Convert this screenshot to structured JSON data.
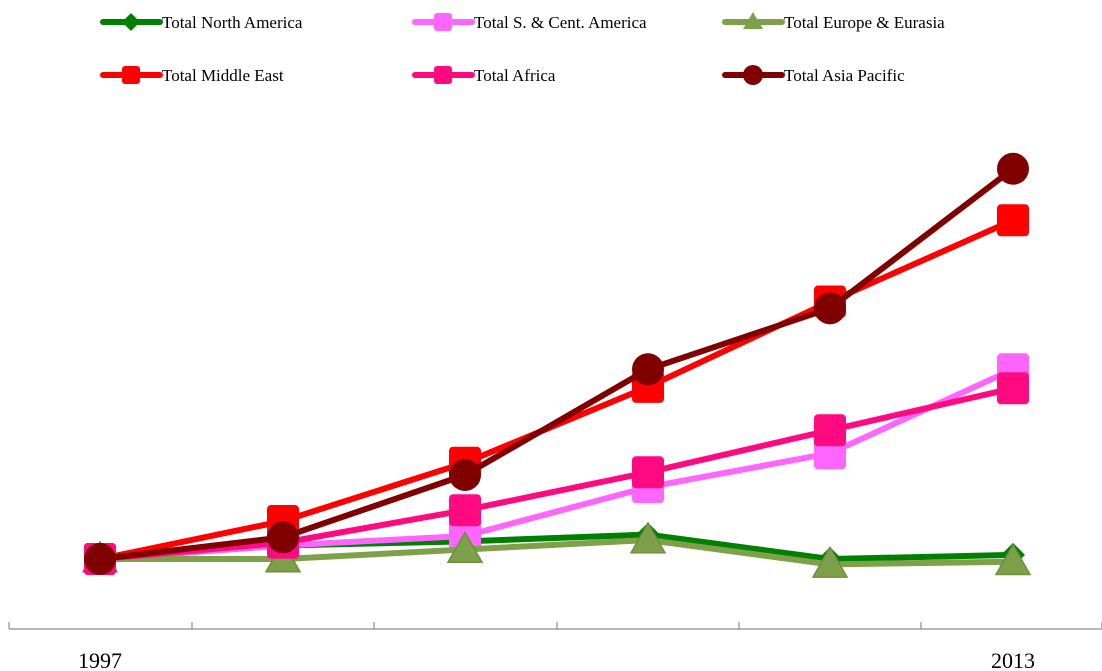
{
  "chart_data": {
    "type": "line",
    "title": "",
    "xlabel": "",
    "ylabel": "",
    "x": [
      "1997",
      "",
      "",
      "",
      "",
      "2013"
    ],
    "x_tick_labels": [
      "1997",
      "2013"
    ],
    "y_axis_visible": false,
    "ylim": [
      -5,
      300
    ],
    "grid": false,
    "legend_position": "top",
    "series": [
      {
        "name": "Total North America",
        "color": "#008000",
        "marker": "diamond",
        "values": [
          0,
          10,
          13,
          18,
          0,
          3
        ]
      },
      {
        "name": "Total S. & Cent. America",
        "color": "#ff66ff",
        "marker": "square",
        "values": [
          0,
          10,
          17,
          53,
          78,
          140
        ]
      },
      {
        "name": "Total Europe & Eurasia",
        "color": "#7fa04a",
        "marker": "triangle",
        "values": [
          0,
          0,
          7,
          14,
          -4,
          -2
        ]
      },
      {
        "name": "Total Middle East",
        "color": "#ff0000",
        "marker": "square",
        "values": [
          0,
          28,
          71,
          127,
          190,
          250
        ]
      },
      {
        "name": "Total Africa",
        "color": "#ff0a80",
        "marker": "square",
        "values": [
          0,
          12,
          36,
          64,
          95,
          126
        ]
      },
      {
        "name": "Total Asia Pacific",
        "color": "#800000",
        "marker": "circle",
        "values": [
          0,
          16,
          62,
          140,
          185,
          288
        ]
      }
    ]
  }
}
